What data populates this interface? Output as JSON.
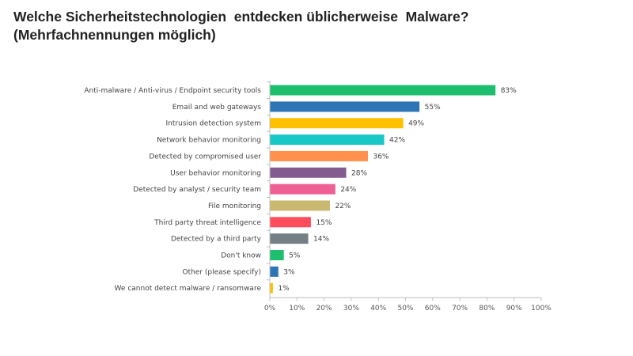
{
  "title": {
    "line1": "Welche Sicherheitstechnologien  entdecken üblicherweise  Malware?",
    "line2": "(Mehrfachnennungen möglich)"
  },
  "chart_data": {
    "type": "bar",
    "orientation": "horizontal",
    "categories": [
      "Anti-malware / Anti-virus / Endpoint security tools",
      "Email and web gateways",
      "Intrusion detection system",
      "Network behavior monitoring",
      "Detected by compromised user",
      "User behavior monitoring",
      "Detected by analyst / security team",
      "File monitoring",
      "Third party threat intelligence",
      "Detected by a third party",
      "Don't know",
      "Other (please specify)",
      "We cannot detect malware / ransomware"
    ],
    "values": [
      83,
      55,
      49,
      42,
      36,
      28,
      24,
      22,
      15,
      14,
      5,
      3,
      1
    ],
    "value_labels": [
      "83%",
      "55%",
      "49%",
      "42%",
      "36%",
      "28%",
      "24%",
      "22%",
      "15%",
      "14%",
      "5%",
      "3%",
      "1%"
    ],
    "colors": [
      "#1DBE6E",
      "#2E75B6",
      "#FFC000",
      "#17C8C6",
      "#FF914D",
      "#845B8F",
      "#EE5F94",
      "#C9B870",
      "#FF4D5E",
      "#747F86",
      "#1DBE6E",
      "#2E75B6",
      "#FFC000"
    ],
    "xlim": [
      0,
      100
    ],
    "xticks": [
      0,
      10,
      20,
      30,
      40,
      50,
      60,
      70,
      80,
      90,
      100
    ],
    "xtick_labels": [
      "0%",
      "10%",
      "20%",
      "30%",
      "40%",
      "50%",
      "60%",
      "70%",
      "80%",
      "90%",
      "100%"
    ],
    "grid": false,
    "legend": "none"
  }
}
